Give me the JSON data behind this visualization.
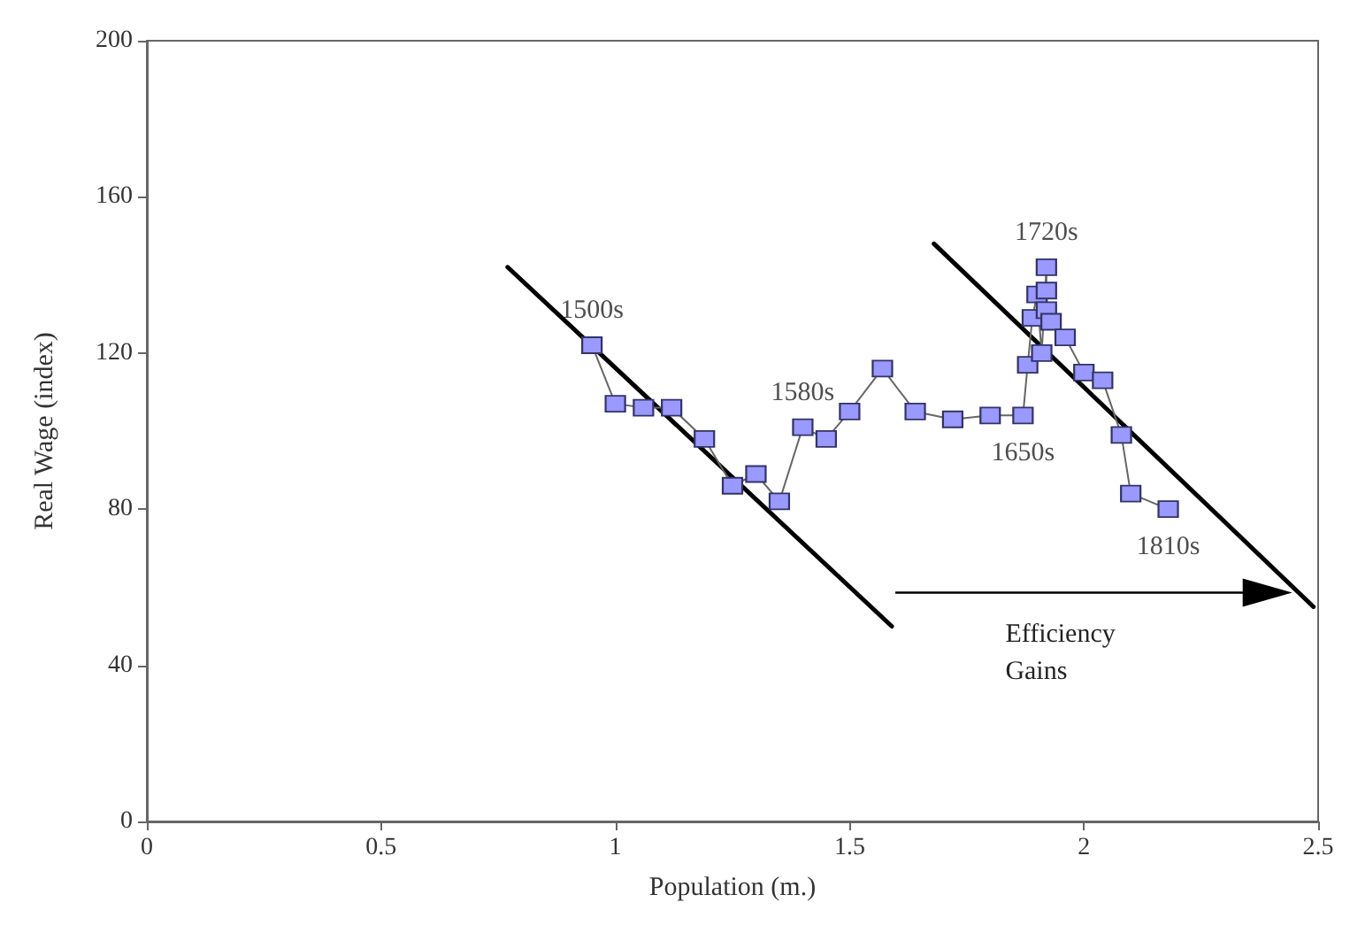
{
  "chart_data": {
    "type": "line",
    "xlabel": "Population (m.)",
    "ylabel": "Real Wage (index)",
    "xlim": [
      0,
      2.5
    ],
    "xticks": [
      0,
      0.5,
      1,
      1.5,
      2,
      2.5
    ],
    "ylim": [
      0,
      200
    ],
    "yticks": [
      0,
      40,
      80,
      120,
      160,
      200
    ],
    "marker": "square",
    "series": [
      {
        "color": "#9999ff",
        "x": [
          0.95,
          1.0,
          1.06,
          1.12,
          1.19,
          1.25,
          1.3,
          1.35,
          1.4,
          1.45,
          1.5,
          1.57,
          1.64,
          1.72,
          1.8,
          1.87,
          1.88,
          1.89,
          1.9,
          1.91,
          1.92,
          1.92,
          1.92,
          1.93,
          1.96,
          2.0,
          2.04,
          2.08,
          2.1,
          2.18
        ],
        "values": [
          122,
          107,
          106,
          106,
          98,
          86,
          89,
          82,
          101,
          98,
          105,
          116,
          105,
          103,
          104,
          104,
          117,
          129,
          135,
          120,
          142,
          136,
          131,
          128,
          124,
          115,
          113,
          99,
          84,
          80
        ]
      },
      {
        "type": "line",
        "color": "#000000",
        "marker": "none",
        "x": [
          0.77,
          1.59
        ],
        "values": [
          142,
          50
        ]
      },
      {
        "type": "line",
        "color": "#000000",
        "marker": "none",
        "x": [
          1.68,
          2.49
        ],
        "values": [
          148,
          55
        ]
      }
    ],
    "annotations": [
      {
        "text": "1500s",
        "x": 0.95,
        "y": 122
      },
      {
        "text": "1580s",
        "x": 1.4,
        "y": 101
      },
      {
        "text": "1650s",
        "x": 1.87,
        "y": 104
      },
      {
        "text": "1720s",
        "x": 1.92,
        "y": 142
      },
      {
        "text": "1810s",
        "x": 2.18,
        "y": 80
      },
      "Efficiency Gains"
    ]
  }
}
